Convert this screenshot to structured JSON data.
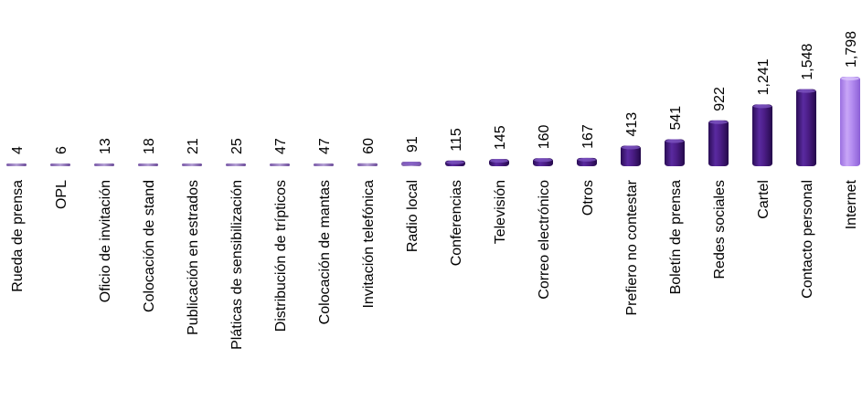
{
  "chart_data": {
    "type": "bar",
    "title": "",
    "xlabel": "",
    "ylabel": "",
    "ylim": [
      0,
      1798
    ],
    "grid": false,
    "legend": "none",
    "value_format": "thousands-comma",
    "categories": [
      "Rueda de prensa",
      "OPL",
      "Oficio de invitación",
      "Colocación de stand",
      "Publicación en estrados",
      "Pláticas de sensibilización",
      "Distribución de trípticos",
      "Colocación de mantas",
      "Invitación telefónica",
      "Radio local",
      "Conferencias",
      "Televisión",
      "Correo electrónico",
      "Otros",
      "Prefiero no contestar",
      "Boletín de prensa",
      "Redes sociales",
      "Cartel",
      "Contacto personal",
      "Internet"
    ],
    "values": [
      4,
      6,
      13,
      18,
      21,
      25,
      47,
      47,
      60,
      91,
      115,
      145,
      160,
      167,
      413,
      541,
      922,
      1241,
      1548,
      1798
    ],
    "bar_colors": {
      "default": "#4b1d86",
      "highlight": "#b38cf0",
      "highlight_index": 19
    }
  }
}
